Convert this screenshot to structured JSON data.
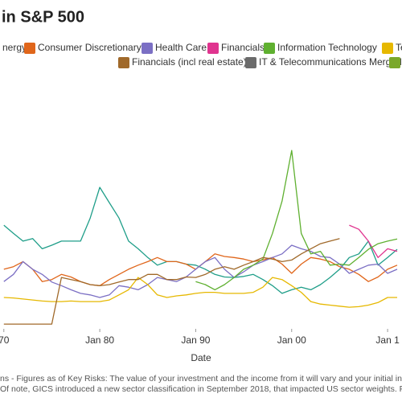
{
  "chart_data": {
    "type": "line",
    "title": "in S&P 500",
    "x_label": "Date",
    "x": [
      1970,
      1971,
      1972,
      1973,
      1974,
      1975,
      1976,
      1977,
      1978,
      1979,
      1980,
      1981,
      1982,
      1983,
      1984,
      1985,
      1986,
      1987,
      1988,
      1989,
      1990,
      1991,
      1992,
      1993,
      1994,
      1995,
      1996,
      1997,
      1998,
      1999,
      2000,
      2001,
      2002,
      2003,
      2004,
      2005,
      2006,
      2007,
      2008,
      2009,
      2010,
      2011
    ],
    "xlim": [
      1969.6,
      2011.5
    ],
    "xticks": [
      {
        "value": 1970,
        "label": "70"
      },
      {
        "value": 1980,
        "label": "Jan 80"
      },
      {
        "value": 1990,
        "label": "Jan 90"
      },
      {
        "value": 2000,
        "label": "Jan 00"
      },
      {
        "value": 2010,
        "label": "Jan 1"
      }
    ],
    "ylim": [
      0,
      35
    ],
    "series": [
      {
        "name": "nergy",
        "color": "#1f9e89",
        "values": [
          19.6,
          18,
          16.5,
          17,
          15,
          15.7,
          16.5,
          16.5,
          16.5,
          21,
          27,
          24,
          21,
          16.5,
          15,
          13.3,
          11.8,
          12.5,
          12.5,
          12,
          11.8,
          11,
          10,
          9.5,
          9.4,
          9.6,
          10,
          9,
          7.8,
          6.3,
          7,
          7.5,
          7,
          8,
          9.4,
          11,
          13.3,
          14,
          16.5,
          11.8,
          13.3,
          14.9
        ]
      },
      {
        "name": "Consumer Discretionary",
        "color": "#e0661b",
        "values": [
          11,
          11.5,
          12.5,
          11,
          8.6,
          9,
          10,
          9.5,
          8.6,
          8,
          7.8,
          9,
          10,
          11,
          11.8,
          12.5,
          13.3,
          12.5,
          12.5,
          12,
          11,
          12.5,
          14,
          13.5,
          13.3,
          13,
          12.5,
          12.8,
          13.3,
          12,
          10.2,
          12,
          13.3,
          13,
          12.5,
          11.5,
          11,
          10,
          8.6,
          9.5,
          11,
          11.8
        ]
      },
      {
        "name": "Health Care",
        "color": "#7b6fc4",
        "values": [
          8.6,
          10,
          12.5,
          11,
          10,
          8.5,
          7.8,
          7,
          6.3,
          6,
          5.5,
          6,
          7.8,
          7.5,
          7,
          8,
          9.4,
          9,
          8.6,
          9.5,
          11,
          12.5,
          13.3,
          11,
          9.4,
          10.5,
          11.8,
          12.5,
          13.3,
          14,
          15.7,
          15,
          14.5,
          13.5,
          13.3,
          12,
          10.2,
          11,
          11.8,
          12,
          10.2,
          11
        ]
      },
      {
        "name": "Financials",
        "color": "#e0348f",
        "values": [
          null,
          null,
          null,
          null,
          null,
          null,
          null,
          null,
          null,
          null,
          null,
          null,
          null,
          null,
          null,
          null,
          null,
          null,
          null,
          null,
          null,
          null,
          null,
          null,
          null,
          null,
          null,
          null,
          null,
          null,
          null,
          null,
          null,
          null,
          null,
          null,
          19.6,
          18.8,
          16.5,
          13.3,
          15,
          14.5
        ]
      },
      {
        "name": "Information Technology",
        "color": "#5fb030",
        "values": [
          null,
          null,
          null,
          null,
          null,
          null,
          null,
          null,
          null,
          null,
          null,
          null,
          null,
          null,
          null,
          null,
          null,
          null,
          null,
          null,
          8.6,
          8,
          7,
          8,
          9.4,
          11,
          11.8,
          13,
          18,
          24.3,
          34.2,
          18,
          14,
          14.5,
          11.8,
          12,
          11.8,
          13.3,
          14.9,
          16,
          16.5,
          16.9
        ]
      },
      {
        "name": "Te",
        "color": "#e6b800",
        "values": [
          5.5,
          5.4,
          5.2,
          5,
          4.8,
          4.7,
          4.7,
          4.8,
          4.7,
          4.7,
          4.7,
          5,
          6,
          7,
          9.4,
          8,
          6,
          5.5,
          5.8,
          6,
          6.3,
          6.5,
          6.5,
          6.3,
          6.3,
          6.3,
          6.5,
          7.5,
          9.4,
          9,
          7.8,
          6.5,
          4.7,
          4.2,
          4.0,
          3.8,
          3.6,
          3.7,
          4,
          4.5,
          5.5,
          5.5
        ]
      },
      {
        "name": "Financials (incl real estate)",
        "color": "#a0692a",
        "values": [
          0.3,
          0.3,
          0.3,
          0.3,
          0.3,
          0.3,
          9.4,
          9,
          8.6,
          8,
          7.8,
          8,
          8.5,
          9,
          9,
          10,
          10,
          9,
          9,
          9.5,
          9.4,
          10,
          11,
          11.5,
          11,
          11.8,
          12.5,
          13.3,
          13,
          12.5,
          12.8,
          14,
          15,
          16,
          16.5,
          17,
          null,
          null,
          null,
          null,
          null,
          null
        ]
      },
      {
        "name": "IT & Telecommunications Merged",
        "color": "#6b6b6b",
        "values": [
          null,
          null,
          null,
          null,
          null,
          null,
          null,
          null,
          null,
          null,
          null,
          null,
          null,
          null,
          null,
          null,
          null,
          null,
          null,
          null,
          null,
          null,
          null,
          null,
          null,
          null,
          null,
          null,
          null,
          null,
          null,
          null,
          null,
          null,
          null,
          null,
          null,
          null,
          null,
          null,
          null,
          null
        ]
      }
    ],
    "footnotes": [
      "ns - Figures as of Key Risks: The value of your investment and the income from it will vary and your initial investment",
      "Of note, GICS introduced a new sector classification in September 2018, that impacted US sector weights. Please c"
    ]
  }
}
